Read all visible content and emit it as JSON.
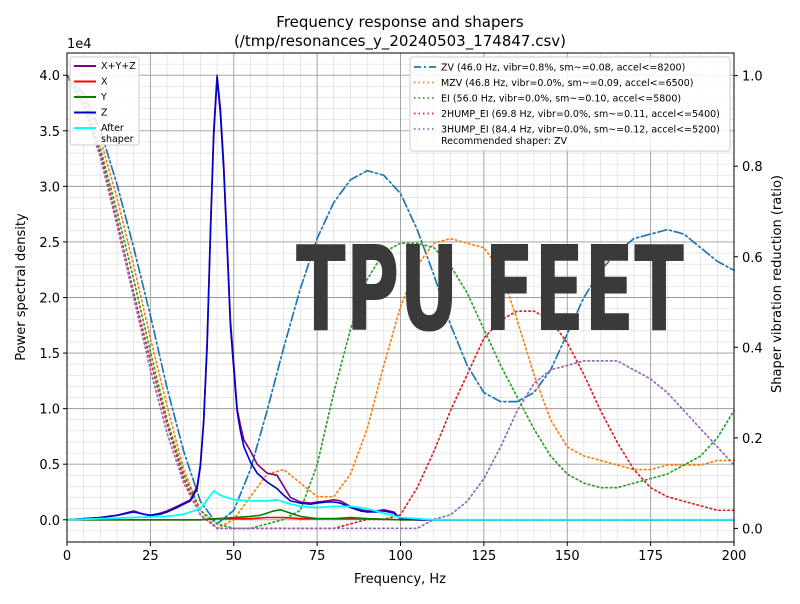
{
  "chart_data": {
    "type": "line",
    "title": "Frequency response and shapers",
    "subtitle": "(/tmp/resonances_y_20240503_174847.csv)",
    "xlabel": "Frequency, Hz",
    "ylabel": "Power spectral density",
    "y2label": "Shaper vibration reduction (ratio)",
    "y_scale_label": "1e4",
    "xlim": [
      0,
      200
    ],
    "ylim": [
      -0.2,
      4.2
    ],
    "y2lim": [
      -0.03,
      1.05
    ],
    "xticks": [
      "0",
      "25",
      "50",
      "75",
      "100",
      "125",
      "150",
      "175",
      "200"
    ],
    "yticks": [
      "0.0",
      "0.5",
      "1.0",
      "1.5",
      "2.0",
      "2.5",
      "3.0",
      "3.5",
      "4.0"
    ],
    "y2ticks": [
      "0.0",
      "0.2",
      "0.4",
      "0.6",
      "0.8",
      "1.0"
    ],
    "overlay_text": "TPU FEET",
    "psd_series": [
      {
        "name": "X+Y+Z",
        "color": "#800080",
        "x": [
          0,
          5,
          10,
          15,
          20,
          23,
          25,
          28,
          30,
          33,
          35,
          37,
          39,
          40,
          41,
          42,
          43,
          44,
          45,
          46,
          47,
          48,
          49,
          50,
          51,
          52,
          53,
          55,
          57,
          60,
          63,
          65,
          67,
          70,
          73,
          75,
          78,
          80,
          82,
          85,
          88,
          90,
          93,
          95,
          98,
          100,
          105,
          110,
          120,
          140,
          160,
          180,
          200
        ],
        "y": [
          0.0,
          0.01,
          0.02,
          0.04,
          0.08,
          0.05,
          0.04,
          0.06,
          0.08,
          0.12,
          0.15,
          0.18,
          0.3,
          0.5,
          0.9,
          1.6,
          2.6,
          3.5,
          4.0,
          3.7,
          3.2,
          2.5,
          1.8,
          1.4,
          1.0,
          0.85,
          0.72,
          0.62,
          0.5,
          0.42,
          0.4,
          0.3,
          0.2,
          0.16,
          0.15,
          0.16,
          0.17,
          0.18,
          0.17,
          0.12,
          0.09,
          0.08,
          0.08,
          0.09,
          0.07,
          0.01,
          0.0,
          0.0,
          0.0,
          0.0,
          0.0,
          0.0,
          0.0
        ]
      },
      {
        "name": "X",
        "color": "#ff0000",
        "x": [
          0,
          20,
          40,
          45,
          50,
          55,
          60,
          65,
          70,
          80,
          90,
          100,
          120,
          160,
          200
        ],
        "y": [
          0.0,
          0.0,
          0.0,
          0.01,
          0.01,
          0.01,
          0.02,
          0.02,
          0.01,
          0.01,
          0.01,
          0.0,
          0.0,
          0.0,
          0.0
        ]
      },
      {
        "name": "Y",
        "color": "#008000",
        "x": [
          0,
          20,
          40,
          45,
          50,
          55,
          58,
          60,
          62,
          64,
          66,
          68,
          70,
          75,
          80,
          85,
          90,
          100,
          120,
          160,
          200
        ],
        "y": [
          0.0,
          0.0,
          0.0,
          0.01,
          0.02,
          0.03,
          0.04,
          0.06,
          0.08,
          0.09,
          0.07,
          0.05,
          0.03,
          0.01,
          0.01,
          0.02,
          0.01,
          0.0,
          0.0,
          0.0,
          0.0
        ]
      },
      {
        "name": "Z",
        "color": "#0000cd",
        "x": [
          0,
          5,
          10,
          15,
          20,
          23,
          25,
          28,
          30,
          33,
          35,
          37,
          39,
          40,
          41,
          42,
          43,
          44,
          45,
          46,
          47,
          48,
          49,
          50,
          51,
          52,
          53,
          55,
          57,
          60,
          63,
          65,
          67,
          70,
          73,
          75,
          78,
          80,
          82,
          85,
          88,
          90,
          93,
          95,
          98,
          100,
          105,
          110,
          120,
          140,
          160,
          180,
          200
        ],
        "y": [
          0.0,
          0.01,
          0.02,
          0.04,
          0.07,
          0.05,
          0.04,
          0.05,
          0.07,
          0.11,
          0.14,
          0.17,
          0.28,
          0.48,
          0.88,
          1.55,
          2.55,
          3.45,
          3.98,
          3.65,
          3.15,
          2.45,
          1.75,
          1.35,
          0.98,
          0.8,
          0.66,
          0.52,
          0.42,
          0.34,
          0.28,
          0.22,
          0.17,
          0.15,
          0.14,
          0.15,
          0.16,
          0.16,
          0.15,
          0.11,
          0.08,
          0.07,
          0.07,
          0.08,
          0.06,
          0.01,
          0.0,
          0.0,
          0.0,
          0.0,
          0.0,
          0.0,
          0.0
        ]
      },
      {
        "name": "After\nshaper",
        "color": "#00ffff",
        "x": [
          0,
          10,
          20,
          30,
          35,
          40,
          42,
          44,
          46,
          48,
          50,
          55,
          60,
          63,
          66,
          70,
          75,
          80,
          85,
          90,
          95,
          100,
          110,
          150,
          200
        ],
        "y": [
          0.0,
          0.01,
          0.02,
          0.03,
          0.05,
          0.1,
          0.18,
          0.26,
          0.22,
          0.2,
          0.18,
          0.17,
          0.17,
          0.18,
          0.15,
          0.12,
          0.11,
          0.12,
          0.12,
          0.1,
          0.06,
          0.02,
          0.0,
          0.0,
          0.0
        ]
      }
    ],
    "shapers": [
      {
        "name": "ZV (46.0 Hz, vibr=0.8%, sm~=0.08, accel<=8200)",
        "color": "#1f77b4",
        "style": "dashdot",
        "f": 46.0
      },
      {
        "name": "MZV (46.8 Hz, vibr=0.0%, sm~=0.09, accel<=6500)",
        "color": "#ff7f0e",
        "style": "dotted",
        "f": 46.8
      },
      {
        "name": "EI (56.0 Hz, vibr=0.0%, sm~=0.10, accel<=5800)",
        "color": "#2ca02c",
        "style": "dotted",
        "f": 56.0
      },
      {
        "name": "2HUMP_EI (69.8 Hz, vibr=0.0%, sm~=0.11, accel<=5400)",
        "color": "#d62728",
        "style": "dotted",
        "f": 69.8
      },
      {
        "name": "3HUMP_EI (84.4 Hz, vibr=0.0%, sm~=0.12, accel<=5200)",
        "color": "#9467bd",
        "style": "dotted",
        "f": 84.4
      }
    ],
    "recommended": "Recommended shaper: ZV",
    "shaper_response": {
      "x": [
        0,
        5,
        10,
        15,
        20,
        25,
        30,
        35,
        40,
        45,
        50,
        55,
        60,
        65,
        70,
        75,
        80,
        85,
        90,
        95,
        100,
        105,
        110,
        115,
        120,
        125,
        130,
        135,
        140,
        145,
        150,
        155,
        160,
        165,
        170,
        175,
        180,
        185,
        190,
        195,
        200
      ],
      "ZV": [
        1.0,
        0.96,
        0.88,
        0.76,
        0.62,
        0.47,
        0.31,
        0.17,
        0.06,
        0.01,
        0.04,
        0.13,
        0.26,
        0.4,
        0.53,
        0.64,
        0.72,
        0.77,
        0.79,
        0.78,
        0.74,
        0.66,
        0.56,
        0.45,
        0.36,
        0.3,
        0.28,
        0.28,
        0.3,
        0.35,
        0.43,
        0.51,
        0.57,
        0.61,
        0.64,
        0.65,
        0.66,
        0.65,
        0.62,
        0.59,
        0.57
      ],
      "MZV": [
        1.0,
        0.95,
        0.86,
        0.73,
        0.58,
        0.42,
        0.27,
        0.13,
        0.04,
        0.0,
        0.02,
        0.07,
        0.12,
        0.13,
        0.1,
        0.07,
        0.07,
        0.12,
        0.22,
        0.36,
        0.49,
        0.58,
        0.63,
        0.64,
        0.63,
        0.62,
        0.57,
        0.46,
        0.34,
        0.24,
        0.18,
        0.16,
        0.15,
        0.14,
        0.13,
        0.13,
        0.14,
        0.14,
        0.14,
        0.15,
        0.15
      ],
      "EI": [
        1.0,
        0.94,
        0.84,
        0.7,
        0.55,
        0.39,
        0.24,
        0.12,
        0.04,
        0.01,
        0.0,
        0.0,
        0.01,
        0.02,
        0.04,
        0.14,
        0.3,
        0.44,
        0.55,
        0.61,
        0.63,
        0.63,
        0.62,
        0.58,
        0.52,
        0.44,
        0.36,
        0.29,
        0.22,
        0.16,
        0.12,
        0.1,
        0.09,
        0.09,
        0.1,
        0.11,
        0.12,
        0.14,
        0.16,
        0.2,
        0.26
      ],
      "2HUMP_EI": [
        1.0,
        0.93,
        0.83,
        0.68,
        0.52,
        0.37,
        0.23,
        0.11,
        0.03,
        0.0,
        0.0,
        0.0,
        0.0,
        0.0,
        0.0,
        0.0,
        0.0,
        0.01,
        0.02,
        0.02,
        0.03,
        0.09,
        0.17,
        0.26,
        0.34,
        0.42,
        0.46,
        0.48,
        0.48,
        0.46,
        0.41,
        0.34,
        0.26,
        0.19,
        0.13,
        0.09,
        0.07,
        0.06,
        0.05,
        0.04,
        0.04
      ],
      "3HUMP_EI": [
        1.0,
        0.93,
        0.82,
        0.67,
        0.51,
        0.35,
        0.21,
        0.1,
        0.03,
        0.0,
        0.0,
        0.0,
        0.0,
        0.0,
        0.0,
        0.0,
        0.0,
        0.0,
        0.0,
        0.0,
        0.0,
        0.0,
        0.02,
        0.03,
        0.06,
        0.11,
        0.18,
        0.26,
        0.32,
        0.35,
        0.36,
        0.37,
        0.37,
        0.37,
        0.35,
        0.33,
        0.3,
        0.26,
        0.22,
        0.18,
        0.14
      ]
    }
  }
}
